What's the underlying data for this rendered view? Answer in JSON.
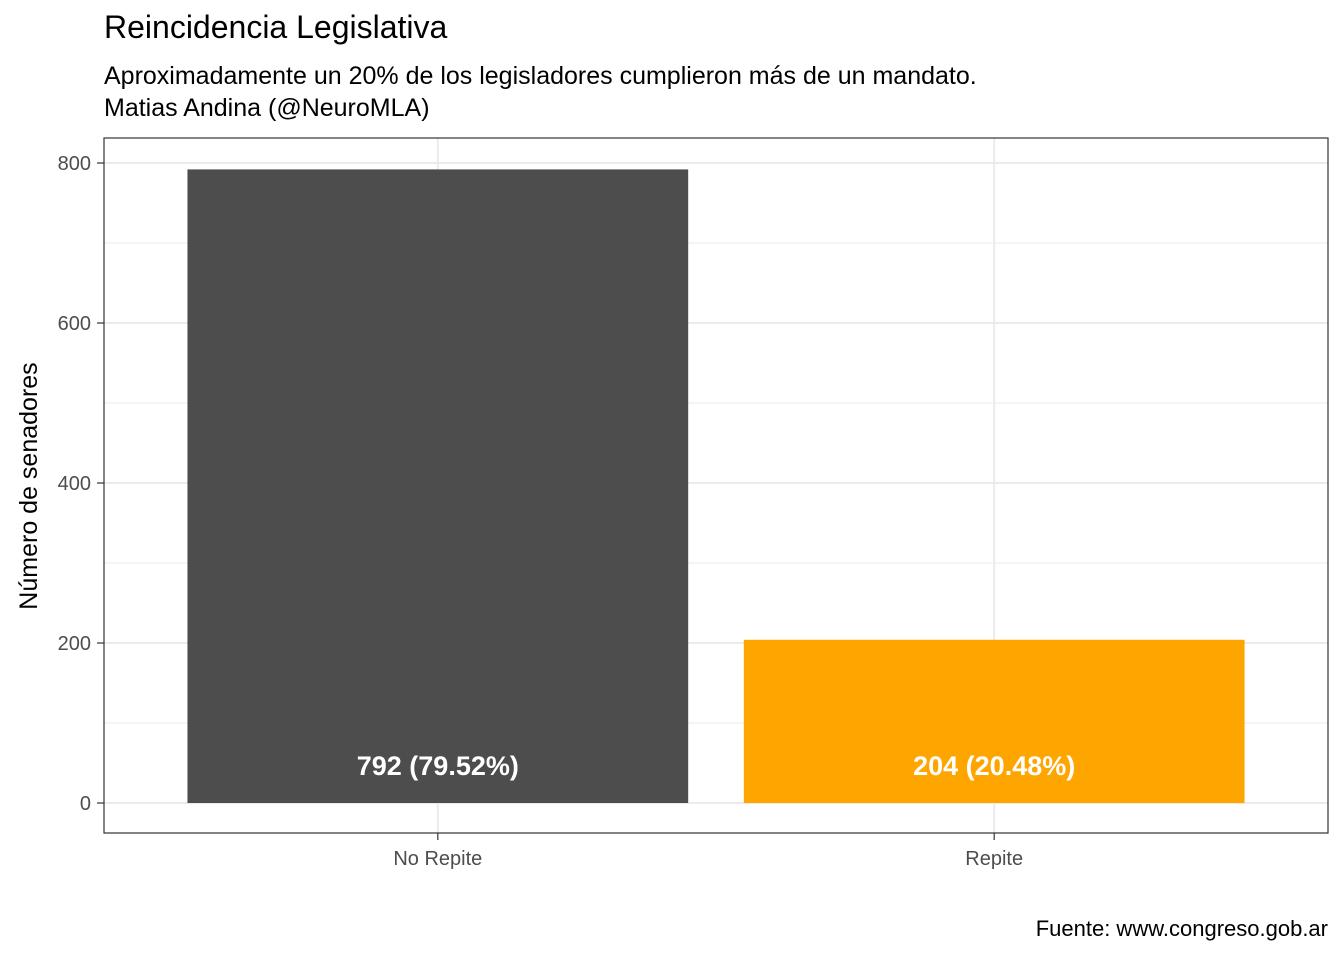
{
  "title": "Reincidencia Legislativa",
  "subtitle_line1": "Aproximadamente un 20% de los legisladores cumplieron más de un mandato.",
  "subtitle_line2": "Matias Andina (@NeuroMLA)",
  "caption": "Fuente: www.congreso.gob.ar",
  "colors": {
    "No Repite": "#4d4d4d",
    "Repite": "#ffa500",
    "bar_label": "#ffffff"
  },
  "chart_data": {
    "type": "bar",
    "categories": [
      "No Repite",
      "Repite"
    ],
    "values": [
      792,
      204
    ],
    "bar_labels": [
      "792 (79.52%)",
      "204 (20.48%)"
    ],
    "xlabel": "",
    "ylabel": "Número de senadores",
    "ylim": [
      0,
      836
    ],
    "yticks": [
      0,
      200,
      400,
      600,
      800
    ],
    "ytick_labels": [
      "0",
      "200",
      "400",
      "600",
      "800"
    ],
    "grid": true,
    "theme": "bw"
  }
}
